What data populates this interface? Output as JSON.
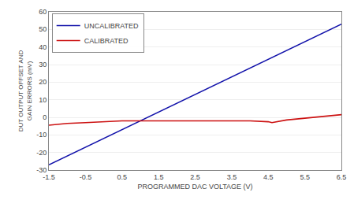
{
  "chart_data": {
    "type": "line",
    "x_label": "PROGRAMMED DAC VOLTAGE (V)",
    "y_label": "DUT OUTPUT OFFSET AND\nGAIN ERRORS (mV)",
    "xlim": [
      -1.5,
      6.5
    ],
    "ylim": [
      -30,
      60
    ],
    "xticks": [
      -1.5,
      -0.5,
      0.5,
      1.5,
      2.5,
      3.5,
      4.5,
      5.5,
      6.5
    ],
    "yticks": [
      -30,
      -20,
      -10,
      0,
      10,
      20,
      30,
      40,
      50,
      60
    ],
    "grid": "y",
    "legend": "upper left",
    "series": [
      {
        "name": "UNCALIBRATED",
        "color": "#1111aa",
        "x": [
          -1.5,
          6.5
        ],
        "values": [
          -27.0,
          53.0
        ]
      },
      {
        "name": "CALIBRATED",
        "color": "#cc1111",
        "x": [
          -1.5,
          -1.0,
          -0.5,
          0.0,
          0.5,
          1.0,
          1.5,
          2.0,
          2.5,
          3.0,
          3.5,
          4.0,
          4.5,
          4.6,
          5.0,
          5.5,
          6.0,
          6.5
        ],
        "values": [
          -4.5,
          -3.5,
          -3.0,
          -2.5,
          -2.0,
          -2.0,
          -2.0,
          -2.0,
          -2.0,
          -2.0,
          -2.0,
          -2.0,
          -2.5,
          -3.0,
          -1.5,
          -0.5,
          0.5,
          1.5
        ]
      }
    ]
  }
}
